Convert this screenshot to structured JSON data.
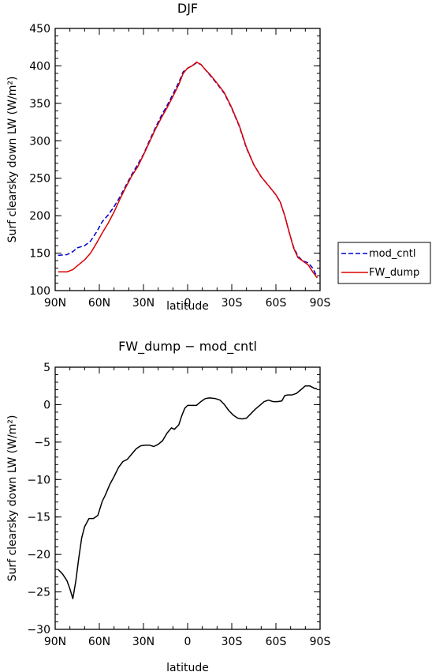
{
  "chart_data": [
    {
      "type": "line",
      "title": "DJF",
      "xlabel": "latitude",
      "ylabel": "Surf clearsky down LW (W/m²)",
      "xlim": [
        -90,
        90
      ],
      "ylim": [
        100,
        450
      ],
      "xticks": [
        -90,
        -60,
        -30,
        0,
        30,
        60,
        90
      ],
      "xtick_labels": [
        "90N",
        "60N",
        "30N",
        "0",
        "30S",
        "60S",
        "90S"
      ],
      "yticks": [
        100,
        150,
        200,
        250,
        300,
        350,
        400,
        450
      ],
      "ytick_labels": [
        "100",
        "150",
        "200",
        "250",
        "300",
        "350",
        "400",
        "450"
      ],
      "legend_position": "outside-right",
      "series": [
        {
          "name": "mod_cntl",
          "color": "#0000cc",
          "dash": "dashed",
          "x": [
            -88,
            -82,
            -78,
            -75,
            -70,
            -66,
            -62,
            -58,
            -54,
            -50,
            -46,
            -42,
            -38,
            -34,
            -30,
            -26,
            -22,
            -18,
            -14,
            -10,
            -6,
            -3,
            0,
            3,
            6,
            9,
            12,
            15,
            20,
            25,
            30,
            35,
            40,
            45,
            50,
            55,
            60,
            63,
            66,
            69,
            72,
            75,
            78,
            82,
            85,
            88
          ],
          "y": [
            147,
            148,
            152,
            157,
            160,
            166,
            178,
            192,
            201,
            212,
            225,
            240,
            255,
            268,
            282,
            300,
            317,
            333,
            347,
            362,
            378,
            392,
            397,
            400,
            404,
            402,
            395,
            388,
            376,
            363,
            343,
            320,
            290,
            268,
            252,
            240,
            228,
            218,
            200,
            178,
            158,
            146,
            140,
            137,
            130,
            118
          ]
        },
        {
          "name": "FW_dump",
          "color": "#dd0000",
          "dash": "solid",
          "x": [
            -88,
            -82,
            -78,
            -75,
            -70,
            -66,
            -62,
            -58,
            -54,
            -50,
            -46,
            -42,
            -38,
            -34,
            -30,
            -26,
            -22,
            -18,
            -14,
            -10,
            -6,
            -3,
            0,
            3,
            6,
            9,
            12,
            15,
            20,
            25,
            30,
            35,
            40,
            45,
            50,
            55,
            60,
            63,
            66,
            69,
            72,
            75,
            78,
            82,
            85,
            88
          ],
          "y": [
            125,
            125,
            128,
            133,
            141,
            150,
            163,
            177,
            190,
            205,
            222,
            238,
            253,
            265,
            281,
            298,
            315,
            330,
            344,
            359,
            375,
            390,
            397,
            400,
            405,
            402,
            395,
            389,
            377,
            364,
            344,
            321,
            291,
            268,
            252,
            240,
            228,
            218,
            200,
            178,
            157,
            144,
            140,
            134,
            125,
            117
          ]
        }
      ]
    },
    {
      "type": "line",
      "title": "FW_dump − mod_cntl",
      "xlabel": "latitude",
      "ylabel": "Surf clearsky down LW (W/m²)",
      "xlim": [
        -90,
        90
      ],
      "ylim": [
        -30,
        5
      ],
      "xticks": [
        -90,
        -60,
        -30,
        0,
        30,
        60,
        90
      ],
      "xtick_labels": [
        "90N",
        "60N",
        "30N",
        "0",
        "30S",
        "60S",
        "90S"
      ],
      "yticks": [
        -30,
        -25,
        -20,
        -15,
        -10,
        -5,
        0,
        5
      ],
      "ytick_labels": [
        "−30",
        "−25",
        "−20",
        "−15",
        "−10",
        "−5",
        "0",
        "5"
      ],
      "series": [
        {
          "color": "#000000",
          "dash": "solid",
          "x": [
            -88,
            -85,
            -82,
            -80,
            -78,
            -76,
            -74,
            -72,
            -70,
            -67,
            -64,
            -61,
            -58,
            -56,
            -53,
            -50,
            -47,
            -44,
            -41,
            -38,
            -35,
            -32,
            -29,
            -26,
            -23,
            -20,
            -17,
            -14,
            -11,
            -9,
            -6,
            -4,
            -2,
            0,
            3,
            6,
            9,
            12,
            15,
            19,
            22,
            25,
            28,
            31,
            34,
            37,
            40,
            43,
            46,
            49,
            52,
            55,
            58,
            61,
            64,
            66,
            68,
            71,
            74,
            77,
            80,
            83,
            86,
            88
          ],
          "y": [
            -22,
            -22.6,
            -23.5,
            -24.6,
            -25.9,
            -23.6,
            -20.5,
            -17.8,
            -16.3,
            -15.2,
            -15.2,
            -14.8,
            -12.9,
            -12.1,
            -10.7,
            -9.6,
            -8.4,
            -7.6,
            -7.3,
            -6.6,
            -5.9,
            -5.5,
            -5.4,
            -5.4,
            -5.6,
            -5.3,
            -4.8,
            -3.8,
            -3.1,
            -3.3,
            -2.7,
            -1.5,
            -0.5,
            -0.1,
            -0.1,
            -0.1,
            0.4,
            0.8,
            0.9,
            0.8,
            0.6,
            0,
            -0.8,
            -1.4,
            -1.8,
            -1.9,
            -1.8,
            -1.2,
            -0.6,
            -0.1,
            0.4,
            0.6,
            0.4,
            0.4,
            0.5,
            1.2,
            1.3,
            1.3,
            1.5,
            2.0,
            2.5,
            2.5,
            2.2,
            2.1
          ]
        }
      ]
    }
  ]
}
